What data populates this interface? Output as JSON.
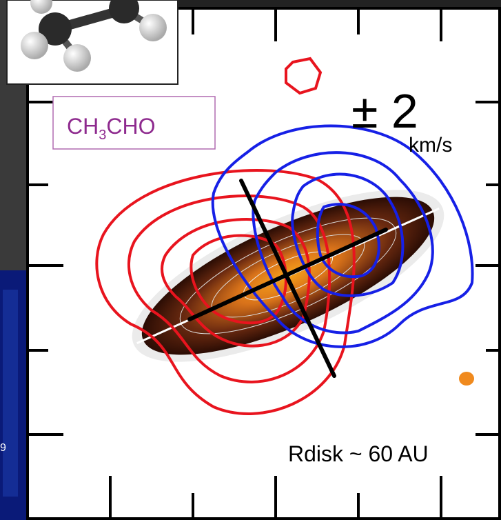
{
  "species": {
    "main": "CH",
    "sub": "3",
    "rest": "CHO"
  },
  "velocity": {
    "value": "± 2",
    "unit": "km/s"
  },
  "disk_radius": "Rdisk ~ 60 AU",
  "side_panel_label": "9"
}
